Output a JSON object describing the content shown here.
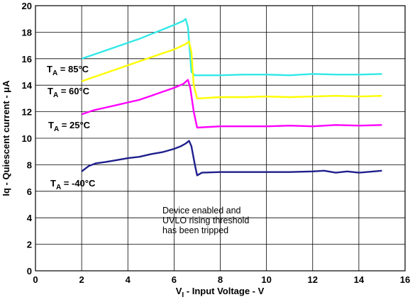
{
  "chart_data": {
    "type": "line",
    "xlabel": "V_I - Input Voltage - V",
    "xlabel_parts": {
      "main": "V",
      "sub": "I",
      "rest": " - Input Voltage - V"
    },
    "ylabel": "Iq - Quiescent current - μA",
    "xlim": [
      0,
      16
    ],
    "ylim": [
      0,
      20
    ],
    "xticks": [
      0,
      2,
      4,
      6,
      8,
      10,
      12,
      14,
      16
    ],
    "yticks": [
      0,
      2,
      4,
      6,
      8,
      10,
      12,
      14,
      16,
      18,
      20
    ],
    "grid": true,
    "annotation": [
      "Device enabled and",
      "UVLO rising threshold",
      "has been tripped"
    ],
    "series": [
      {
        "name": "TA = 85°C",
        "label_parts": {
          "main": "T",
          "sub": "A",
          "rest": " = 85°C"
        },
        "color": "#33e8e8",
        "x": [
          2.0,
          2.5,
          3.0,
          3.5,
          4.0,
          4.5,
          5.0,
          5.5,
          6.0,
          6.4,
          6.5,
          6.6,
          6.75,
          6.9,
          7.0,
          8.0,
          9.0,
          10.0,
          11.0,
          12.0,
          13.0,
          14.0,
          15.0
        ],
        "y": [
          16.0,
          16.3,
          16.6,
          16.9,
          17.2,
          17.5,
          17.85,
          18.2,
          18.55,
          18.85,
          19.0,
          18.4,
          15.0,
          14.75,
          14.75,
          14.75,
          14.8,
          14.8,
          14.75,
          14.85,
          14.8,
          14.8,
          14.85
        ]
      },
      {
        "name": "TA = 60°C",
        "label_parts": {
          "main": "T",
          "sub": "A",
          "rest": " = 60°C"
        },
        "color": "#ffff00",
        "x": [
          2.0,
          2.5,
          3.0,
          3.5,
          4.0,
          4.5,
          5.0,
          5.5,
          6.0,
          6.5,
          6.65,
          6.75,
          6.85,
          7.0,
          8.0,
          9.0,
          10.0,
          11.0,
          12.0,
          13.0,
          14.0,
          15.0
        ],
        "y": [
          14.3,
          14.6,
          14.9,
          15.2,
          15.5,
          15.8,
          16.1,
          16.4,
          16.7,
          17.1,
          17.3,
          16.5,
          14.0,
          13.0,
          13.1,
          13.1,
          13.15,
          13.1,
          13.15,
          13.2,
          13.15,
          13.2
        ]
      },
      {
        "name": "TA = 25°C",
        "label_parts": {
          "main": "T",
          "sub": "A",
          "rest": " = 25°C"
        },
        "color": "#ff00ff",
        "x": [
          2.0,
          2.5,
          3.0,
          3.5,
          4.0,
          4.5,
          5.0,
          5.5,
          6.0,
          6.4,
          6.6,
          6.7,
          6.85,
          7.0,
          8.0,
          9.0,
          10.0,
          11.0,
          12.0,
          13.0,
          14.0,
          15.0
        ],
        "y": [
          11.8,
          12.1,
          12.3,
          12.5,
          12.7,
          12.9,
          13.2,
          13.5,
          13.8,
          14.1,
          14.4,
          13.8,
          12.0,
          10.8,
          10.9,
          10.9,
          10.9,
          10.95,
          10.9,
          11.0,
          10.95,
          11.0
        ]
      },
      {
        "name": "TA = -40°C",
        "label_parts": {
          "main": "T",
          "sub": "A",
          "rest": " = -40°C"
        },
        "color": "#1f1f8c",
        "x": [
          2.0,
          2.3,
          2.6,
          3.0,
          3.5,
          4.0,
          4.5,
          5.0,
          5.5,
          6.0,
          6.3,
          6.5,
          6.65,
          6.75,
          6.9,
          7.0,
          7.2,
          8.0,
          9.0,
          10.0,
          11.0,
          12.0,
          12.5,
          13.0,
          13.5,
          14.0,
          15.0
        ],
        "y": [
          7.5,
          7.9,
          8.1,
          8.2,
          8.35,
          8.5,
          8.6,
          8.8,
          8.95,
          9.2,
          9.4,
          9.6,
          9.8,
          9.4,
          8.0,
          7.2,
          7.4,
          7.45,
          7.45,
          7.45,
          7.45,
          7.5,
          7.55,
          7.4,
          7.5,
          7.4,
          7.55
        ]
      }
    ]
  }
}
